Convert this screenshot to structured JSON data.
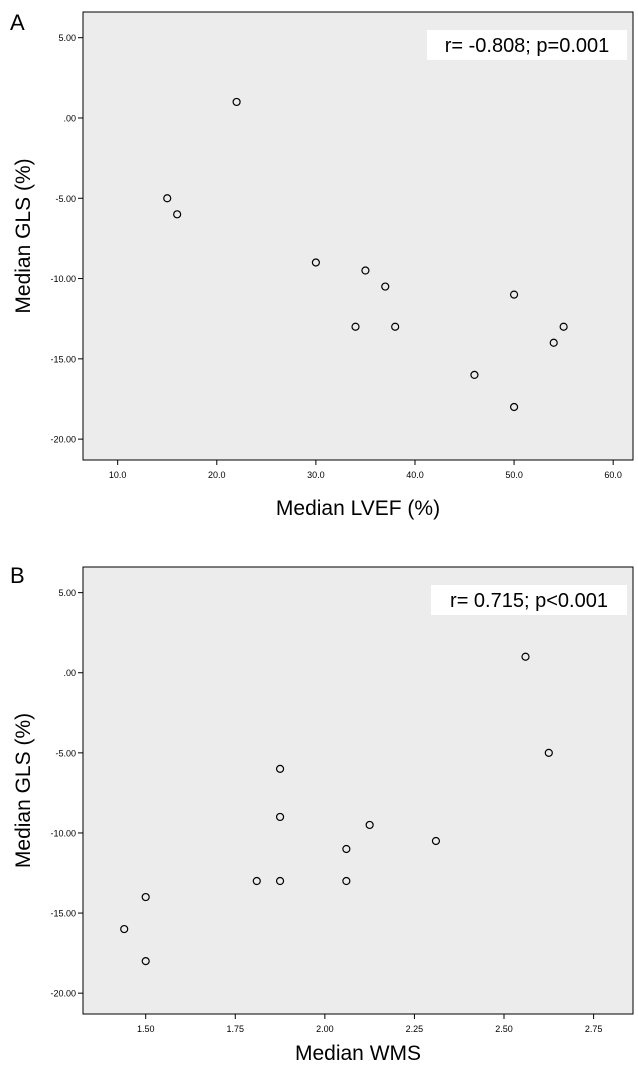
{
  "chart_data": [
    {
      "type": "scatter",
      "panel_label": "A",
      "annotation": "r= -0.808; p=0.001",
      "xlabel": "Median LVEF (%)",
      "ylabel": "Median GLS (%)",
      "xlim": [
        6.5,
        62.0
      ],
      "ylim": [
        -21.3,
        6.6
      ],
      "xticks": [
        10,
        20,
        30,
        40,
        50,
        60
      ],
      "xtick_labels": [
        "10.0",
        "20.0",
        "30.0",
        "40.0",
        "50.0",
        "60.0"
      ],
      "yticks": [
        5,
        0,
        -5,
        -10,
        -15,
        -20
      ],
      "ytick_labels": [
        "5.00",
        ".00",
        "-5.00",
        "-10.00",
        "-15.00",
        "-20.00"
      ],
      "grid": false,
      "points": [
        {
          "x": 22,
          "y": 1.0
        },
        {
          "x": 15,
          "y": -5.0
        },
        {
          "x": 16,
          "y": -6.0
        },
        {
          "x": 30,
          "y": -9.0
        },
        {
          "x": 35,
          "y": -9.5
        },
        {
          "x": 37,
          "y": -10.5
        },
        {
          "x": 34,
          "y": -13.0
        },
        {
          "x": 38,
          "y": -13.0
        },
        {
          "x": 50,
          "y": -11.0
        },
        {
          "x": 55,
          "y": -13.0
        },
        {
          "x": 54,
          "y": -14.0
        },
        {
          "x": 46,
          "y": -16.0
        },
        {
          "x": 50,
          "y": -18.0
        }
      ]
    },
    {
      "type": "scatter",
      "panel_label": "B",
      "annotation": "r= 0.715; p<0.001",
      "xlabel": "Median WMS",
      "ylabel": "Median GLS (%)",
      "xlim": [
        1.325,
        2.86
      ],
      "ylim": [
        -21.3,
        6.6
      ],
      "xticks": [
        1.5,
        1.75,
        2.0,
        2.25,
        2.5,
        2.75
      ],
      "xtick_labels": [
        "1.50",
        "1.75",
        "2.00",
        "2.25",
        "2.50",
        "2.75"
      ],
      "yticks": [
        5,
        0,
        -5,
        -10,
        -15,
        -20
      ],
      "ytick_labels": [
        "5.00",
        ".00",
        "-5.00",
        "-10.00",
        "-15.00",
        "-20.00"
      ],
      "grid": false,
      "points": [
        {
          "x": 2.56,
          "y": 1.0
        },
        {
          "x": 2.625,
          "y": -5.0
        },
        {
          "x": 1.875,
          "y": -6.0
        },
        {
          "x": 1.875,
          "y": -9.0
        },
        {
          "x": 2.125,
          "y": -9.5
        },
        {
          "x": 2.31,
          "y": -10.5
        },
        {
          "x": 2.06,
          "y": -11.0
        },
        {
          "x": 1.81,
          "y": -13.0
        },
        {
          "x": 1.875,
          "y": -13.0
        },
        {
          "x": 2.06,
          "y": -13.0
        },
        {
          "x": 1.5,
          "y": -14.0
        },
        {
          "x": 1.44,
          "y": -16.0
        },
        {
          "x": 1.5,
          "y": -18.0
        }
      ]
    }
  ]
}
